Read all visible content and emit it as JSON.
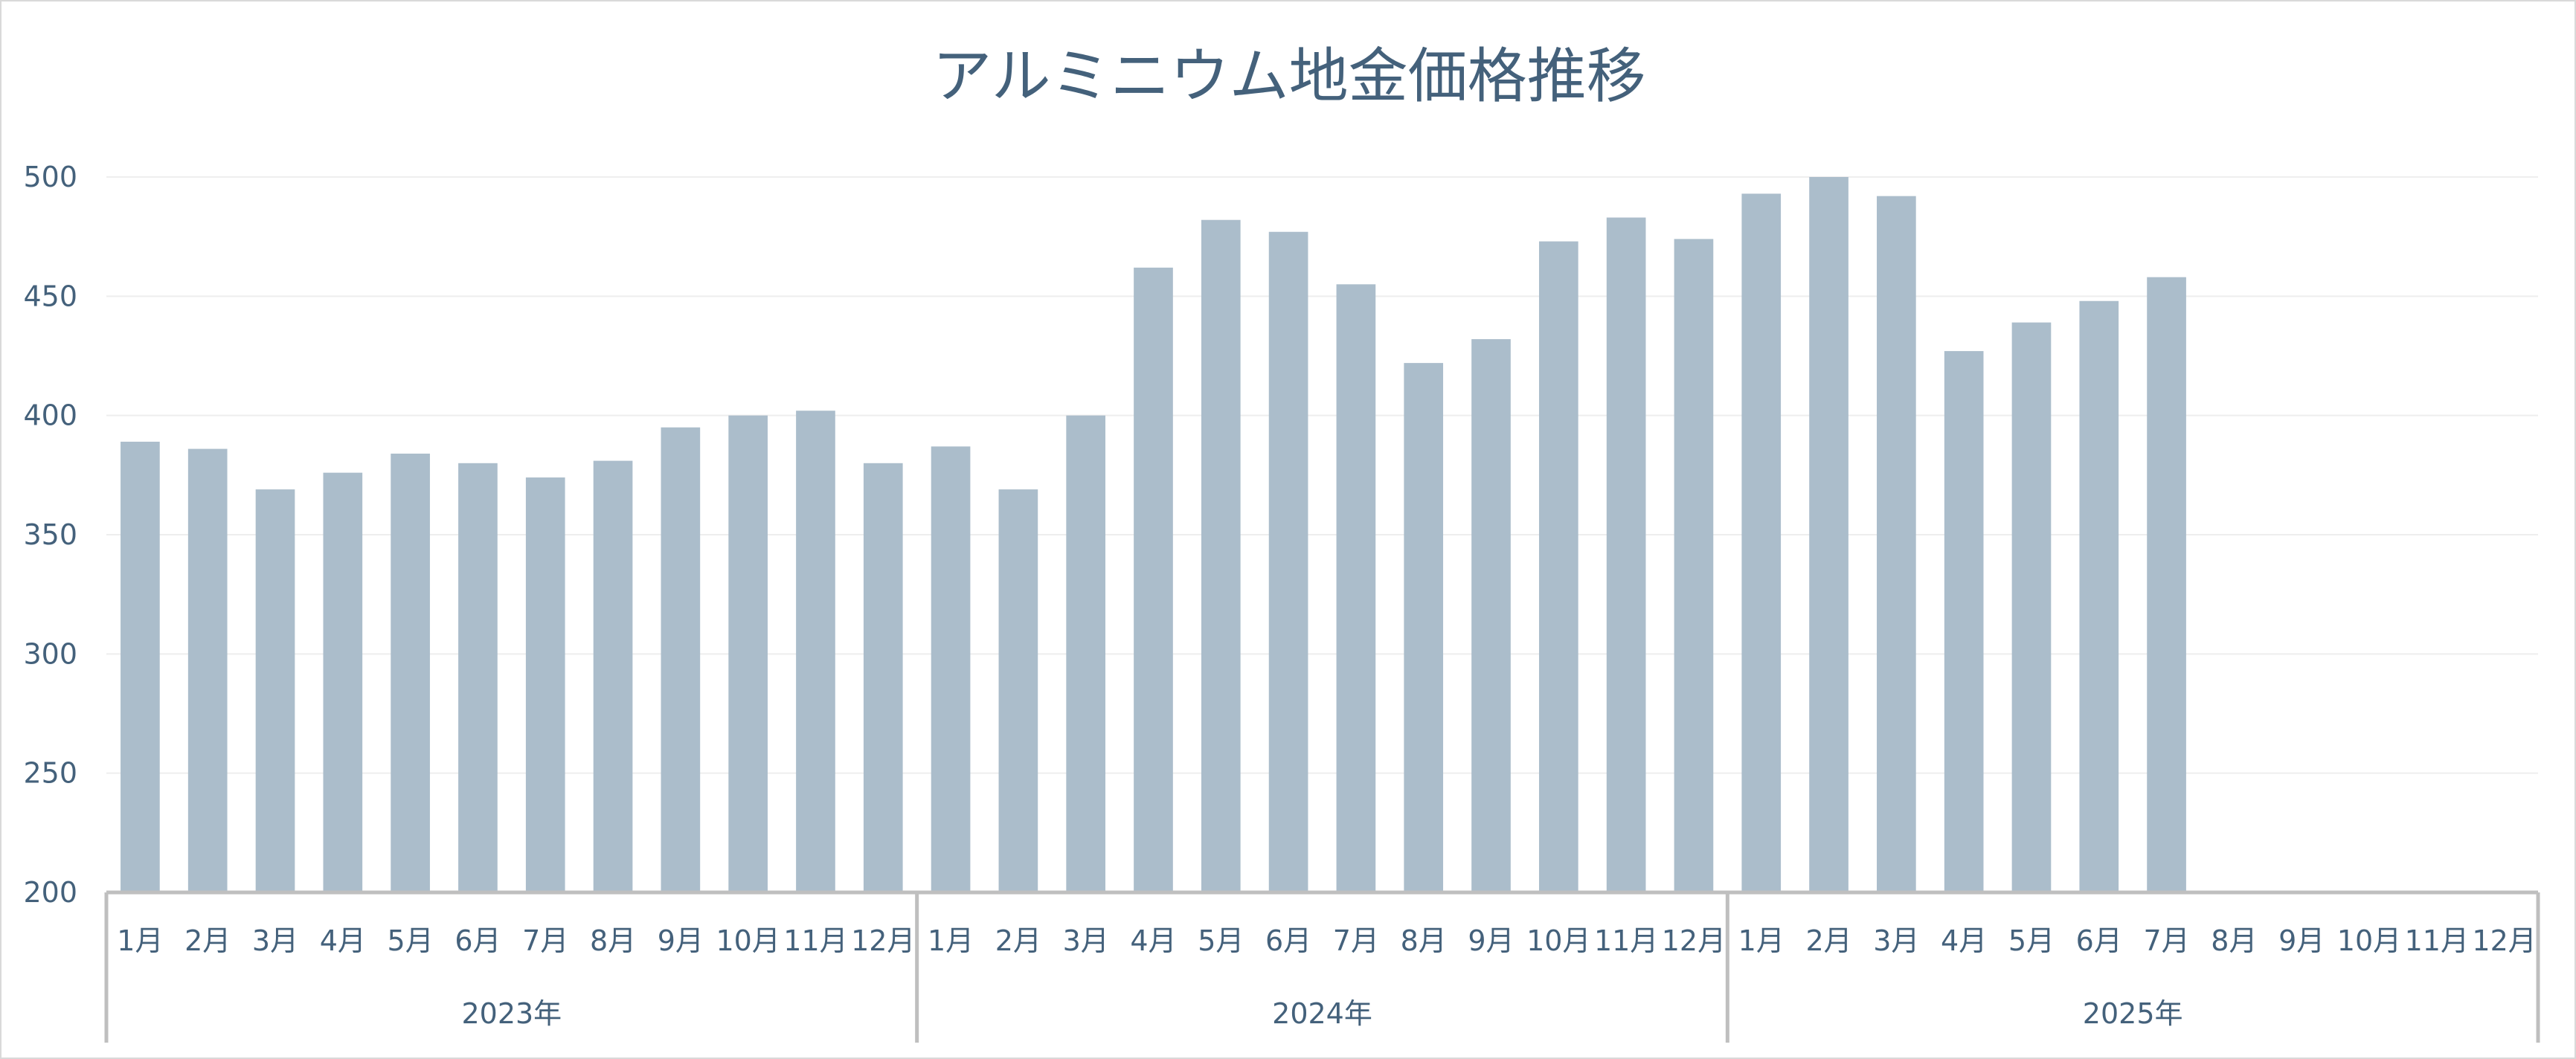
{
  "chart_data": {
    "type": "bar",
    "title": "アルミニウム地金価格推移",
    "xlabel": "",
    "ylabel": "",
    "ylim": [
      200,
      500
    ],
    "yticks": [
      200,
      250,
      300,
      350,
      400,
      450,
      500
    ],
    "grid": true,
    "legend": "none",
    "bar_color": "#abbdcb",
    "text_color": "#44617b",
    "groups": [
      {
        "label": "2023年",
        "categories": [
          "1月",
          "2月",
          "3月",
          "4月",
          "5月",
          "6月",
          "7月",
          "8月",
          "9月",
          "10月",
          "11月",
          "12月"
        ]
      },
      {
        "label": "2024年",
        "categories": [
          "1月",
          "2月",
          "3月",
          "4月",
          "5月",
          "6月",
          "7月",
          "8月",
          "9月",
          "10月",
          "11月",
          "12月"
        ]
      },
      {
        "label": "2025年",
        "categories": [
          "1月",
          "2月",
          "3月",
          "4月",
          "5月",
          "6月",
          "7月",
          "8月",
          "9月",
          "10月",
          "11月",
          "12月"
        ]
      }
    ],
    "series": [
      {
        "values": [
          389,
          386,
          369,
          376,
          384,
          380,
          374,
          381,
          395,
          400,
          402,
          380,
          387,
          369,
          400,
          462,
          482,
          477,
          455,
          422,
          432,
          473,
          483,
          474,
          493,
          500,
          492,
          427,
          439,
          448,
          458,
          null,
          null,
          null,
          null,
          null
        ]
      }
    ]
  }
}
